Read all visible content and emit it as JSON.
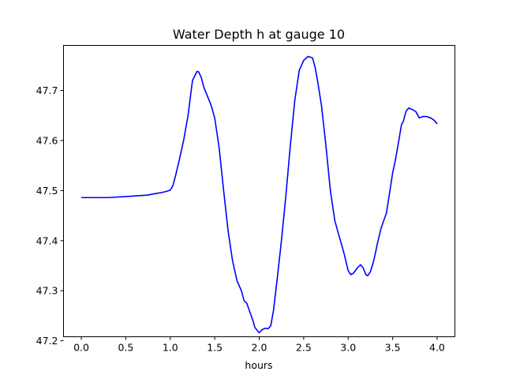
{
  "chart_data": {
    "type": "line",
    "title": "Water Depth h at gauge 10",
    "xlabel": "hours",
    "ylabel": "",
    "xlim": [
      -0.2,
      4.2
    ],
    "ylim": [
      47.208,
      47.79
    ],
    "grid": false,
    "x_ticks": [
      0.0,
      0.5,
      1.0,
      1.5,
      2.0,
      2.5,
      3.0,
      3.5,
      4.0
    ],
    "x_tick_labels": [
      "0.0",
      "0.5",
      "1.0",
      "1.5",
      "2.0",
      "2.5",
      "3.0",
      "3.5",
      "4.0"
    ],
    "y_ticks": [
      47.2,
      47.3,
      47.4,
      47.5,
      47.6,
      47.7
    ],
    "y_tick_labels": [
      "47.2",
      "47.3",
      "47.4",
      "47.5",
      "47.6",
      "47.7"
    ],
    "series": [
      {
        "color": "#0000ff",
        "x": [
          0.0,
          0.3,
          0.5,
          0.75,
          0.8,
          0.9,
          0.95,
          1.0,
          1.03,
          1.06,
          1.1,
          1.15,
          1.2,
          1.25,
          1.3,
          1.32,
          1.35,
          1.38,
          1.42,
          1.46,
          1.5,
          1.55,
          1.6,
          1.65,
          1.7,
          1.75,
          1.8,
          1.83,
          1.86,
          1.9,
          1.93,
          1.95,
          1.98,
          2.0,
          2.03,
          2.07,
          2.1,
          2.13,
          2.16,
          2.2,
          2.25,
          2.3,
          2.35,
          2.4,
          2.45,
          2.5,
          2.55,
          2.6,
          2.63,
          2.66,
          2.7,
          2.75,
          2.8,
          2.85,
          2.9,
          2.93,
          2.96,
          3.0,
          3.03,
          3.06,
          3.1,
          3.14,
          3.17,
          3.2,
          3.22,
          3.25,
          3.28,
          3.3,
          3.33,
          3.37,
          3.4,
          3.43,
          3.47,
          3.5,
          3.53,
          3.56,
          3.6,
          3.62,
          3.65,
          3.68,
          3.72,
          3.76,
          3.8,
          3.84,
          3.88,
          3.93,
          3.97,
          4.0
        ],
        "values": [
          47.486,
          47.486,
          47.488,
          47.491,
          47.493,
          47.496,
          47.498,
          47.501,
          47.51,
          47.53,
          47.56,
          47.6,
          47.65,
          47.72,
          47.738,
          47.737,
          47.725,
          47.705,
          47.688,
          47.67,
          47.645,
          47.585,
          47.5,
          47.42,
          47.36,
          47.32,
          47.3,
          47.28,
          47.275,
          47.255,
          47.24,
          47.227,
          47.22,
          47.216,
          47.222,
          47.225,
          47.224,
          47.23,
          47.26,
          47.32,
          47.4,
          47.49,
          47.59,
          47.68,
          47.74,
          47.76,
          47.768,
          47.765,
          47.745,
          47.715,
          47.67,
          47.59,
          47.5,
          47.44,
          47.408,
          47.39,
          47.37,
          47.34,
          47.332,
          47.335,
          47.345,
          47.352,
          47.345,
          47.332,
          47.33,
          47.338,
          47.355,
          47.37,
          47.395,
          47.425,
          47.44,
          47.455,
          47.5,
          47.535,
          47.56,
          47.59,
          47.632,
          47.638,
          47.658,
          47.665,
          47.662,
          47.658,
          47.645,
          47.648,
          47.648,
          47.645,
          47.64,
          47.633
        ]
      }
    ]
  }
}
